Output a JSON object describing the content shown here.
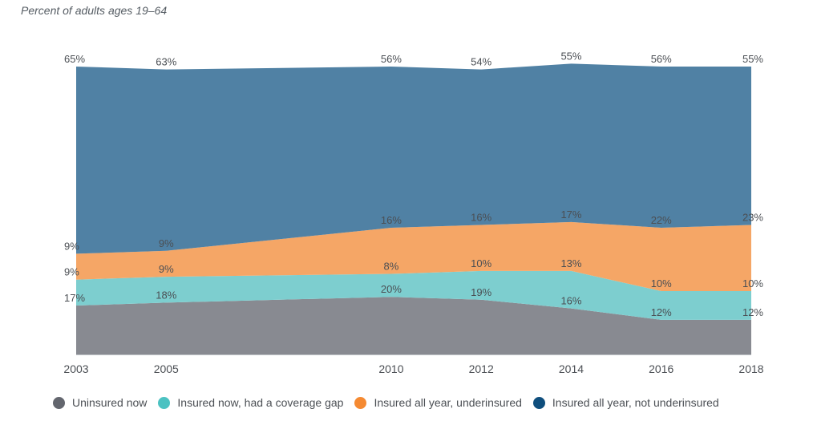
{
  "chart_data": {
    "type": "area",
    "stacked": true,
    "title": "",
    "subtitle": "Percent of adults ages 19–64",
    "xlabel": "",
    "ylabel": "",
    "ylim": [
      0,
      100
    ],
    "grid": false,
    "legend_position": "bottom",
    "categories": [
      "2003",
      "2005",
      "2010",
      "2012",
      "2014",
      "2016",
      "2018"
    ],
    "series": [
      {
        "name": "Uninsured now",
        "color": "#888a91",
        "values": [
          17,
          18,
          20,
          19,
          16,
          12,
          12
        ],
        "labels": [
          "17%",
          "18%",
          "20%",
          "19%",
          "16%",
          "12%",
          "12%"
        ]
      },
      {
        "name": "Insured now, had a coverage gap",
        "color": "#7dcecf",
        "values": [
          9,
          9,
          8,
          10,
          13,
          10,
          10
        ],
        "labels": [
          "9%",
          "9%",
          "8%",
          "10%",
          "13%",
          "10%",
          "10%"
        ]
      },
      {
        "name": "Insured all year, underinsured",
        "color": "#f5a666",
        "values": [
          9,
          9,
          16,
          16,
          17,
          22,
          23
        ],
        "labels": [
          "9%",
          "9%",
          "16%",
          "16%",
          "17%",
          "22%",
          "23%"
        ]
      },
      {
        "name": "Insured all year, not underinsured",
        "color": "#5081a4",
        "values": [
          65,
          63,
          56,
          54,
          55,
          56,
          55
        ],
        "labels": [
          "65%",
          "63%",
          "56%",
          "54%",
          "55%",
          "56%",
          "55%"
        ]
      }
    ],
    "legend_colors": [
      "#63666e",
      "#4cc2c2",
      "#f58a32",
      "#0f4e7d"
    ]
  }
}
